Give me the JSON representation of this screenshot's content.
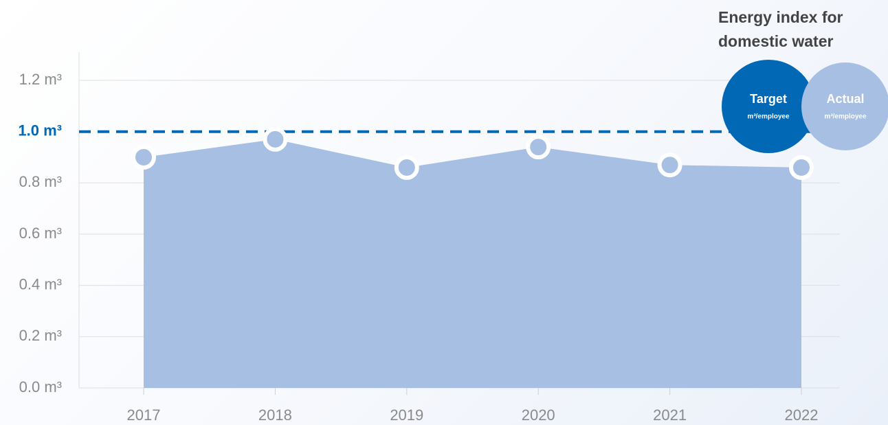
{
  "chart_data": {
    "type": "area",
    "title": "Energy index for domestic water",
    "categories": [
      "2017",
      "2018",
      "2019",
      "2020",
      "2021",
      "2022"
    ],
    "series": [
      {
        "name": "Actual",
        "unit": "m³/employee",
        "color": "#a6bfe3",
        "values": [
          0.9,
          0.97,
          0.86,
          0.94,
          0.87,
          0.86
        ]
      }
    ],
    "target": {
      "name": "Target",
      "unit": "m³/employee",
      "color": "#0068b4",
      "value": 1.0,
      "label": "1.0 m³"
    },
    "ylim": [
      0,
      1.31
    ],
    "yticks": [
      {
        "value": 0,
        "label": "0.0 m³"
      },
      {
        "value": 0.2,
        "label": "0.2 m³"
      },
      {
        "value": 0.4,
        "label": "0.4 m³"
      },
      {
        "value": 0.6,
        "label": "0.6 m³"
      },
      {
        "value": 0.8,
        "label": "0.8 m³"
      },
      {
        "value": 1.2,
        "label": "1.2 m³"
      }
    ],
    "grid": true
  }
}
